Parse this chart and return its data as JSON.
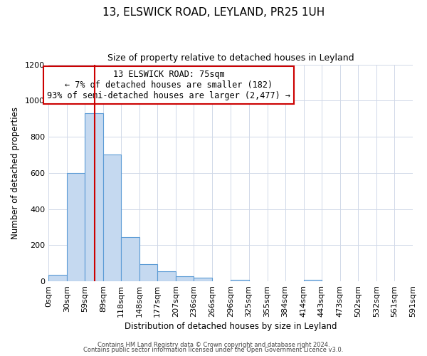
{
  "title": "13, ELSWICK ROAD, LEYLAND, PR25 1UH",
  "subtitle": "Size of property relative to detached houses in Leyland",
  "xlabel": "Distribution of detached houses by size in Leyland",
  "ylabel": "Number of detached properties",
  "bin_edges": [
    0,
    30,
    59,
    89,
    118,
    148,
    177,
    207,
    236,
    266,
    296,
    325,
    355,
    384,
    414,
    443,
    473,
    502,
    532,
    561,
    591
  ],
  "bar_heights": [
    35,
    600,
    930,
    700,
    245,
    95,
    55,
    30,
    20,
    0,
    10,
    0,
    0,
    0,
    10,
    0,
    0,
    0,
    0,
    0
  ],
  "bar_color": "#c5d9f0",
  "bar_edge_color": "#5b9bd5",
  "vline_color": "#cc0000",
  "vline_x": 75,
  "ylim": [
    0,
    1200
  ],
  "yticks": [
    0,
    200,
    400,
    600,
    800,
    1000,
    1200
  ],
  "annotation_title": "13 ELSWICK ROAD: 75sqm",
  "annotation_line1": "← 7% of detached houses are smaller (182)",
  "annotation_line2": "93% of semi-detached houses are larger (2,477) →",
  "annotation_box_color": "#ffffff",
  "annotation_box_edge": "#cc0000",
  "footer1": "Contains HM Land Registry data © Crown copyright and database right 2024.",
  "footer2": "Contains public sector information licensed under the Open Government Licence v3.0.",
  "background_color": "#ffffff",
  "grid_color": "#d0d8e8",
  "title_fontsize": 11,
  "subtitle_fontsize": 9,
  "axis_label_fontsize": 8.5,
  "tick_fontsize": 8,
  "annotation_fontsize": 8.5,
  "footer_fontsize": 6
}
